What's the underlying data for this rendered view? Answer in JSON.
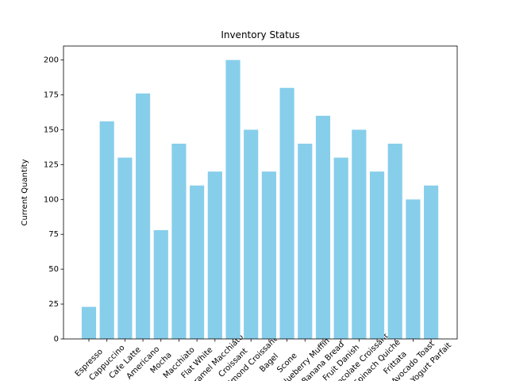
{
  "chart_data": {
    "type": "bar",
    "title": "Inventory Status",
    "y_label": "Current Quantity",
    "categories": [
      "Espresso",
      "Cappuccino",
      "Cafe Latte",
      "Americano",
      "Mocha",
      "Macchiato",
      "Flat White",
      "Caramel Macchiato",
      "Croissant",
      "Almond Croissant",
      "Bagel",
      "Scone",
      "Blueberry Muffin",
      "Banana Bread",
      "Fruit Danish",
      "Chocolate Croissant",
      "Spinach Quiche",
      "Frittata",
      "Avocado Toast",
      "Yogurt Parfait"
    ],
    "values": [
      23,
      156,
      130,
      176,
      78,
      140,
      110,
      120,
      200,
      150,
      120,
      180,
      140,
      160,
      130,
      150,
      120,
      140,
      100,
      110
    ],
    "color": "#87ceeb",
    "ylim": [
      0,
      210
    ],
    "yticks": [
      0,
      25,
      50,
      75,
      100,
      125,
      150,
      175,
      200
    ]
  }
}
